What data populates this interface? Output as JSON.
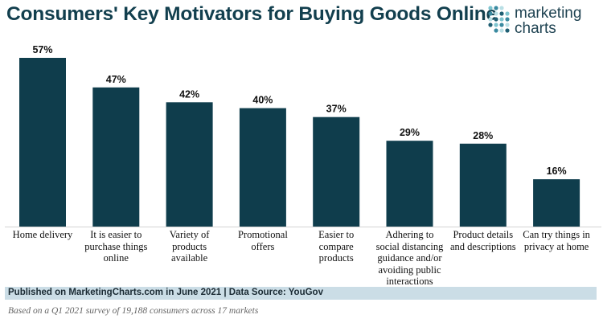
{
  "chart_data": {
    "type": "bar",
    "title": "Consumers' Key Motivators for Buying Goods Online",
    "categories": [
      "Home delivery",
      "It is easier to purchase things online",
      "Variety of products available",
      "Promotional offers",
      "Easier to compare products",
      "Adhering to social distancing guidance and/or avoiding public interactions",
      "Product details and descriptions",
      "Can try things in privacy at home"
    ],
    "category_lines": [
      [
        "Home delivery"
      ],
      [
        "It is easier to",
        "purchase things",
        "online"
      ],
      [
        "Variety of",
        "products",
        "available"
      ],
      [
        "Promotional",
        "offers"
      ],
      [
        "Easier to",
        "compare",
        "products"
      ],
      [
        "Adhering to",
        "social distancing",
        "guidance and/or",
        "avoiding public",
        "interactions"
      ],
      [
        "Product details",
        "and descriptions"
      ],
      [
        "Can try things in",
        "privacy at home"
      ]
    ],
    "values": [
      57,
      47,
      42,
      40,
      37,
      29,
      28,
      16
    ],
    "data_labels": [
      "57%",
      "47%",
      "42%",
      "40%",
      "37%",
      "29%",
      "28%",
      "16%"
    ],
    "unit": "%",
    "ylim": [
      0,
      57
    ],
    "grid": false,
    "legend": "none",
    "bar_color": "#0f3d4c"
  },
  "logo": {
    "line1": "marketing",
    "line2": "charts",
    "dot_colors": [
      "#7ec4cf",
      "#3a8aa0",
      "#b9dfe5",
      "#1f5f73"
    ]
  },
  "footer": {
    "source": "Published on MarketingCharts.com in June 2021 | Data Source: YouGov",
    "note": "Based on a Q1 2021 survey of 19,188 consumers across 17 markets"
  }
}
